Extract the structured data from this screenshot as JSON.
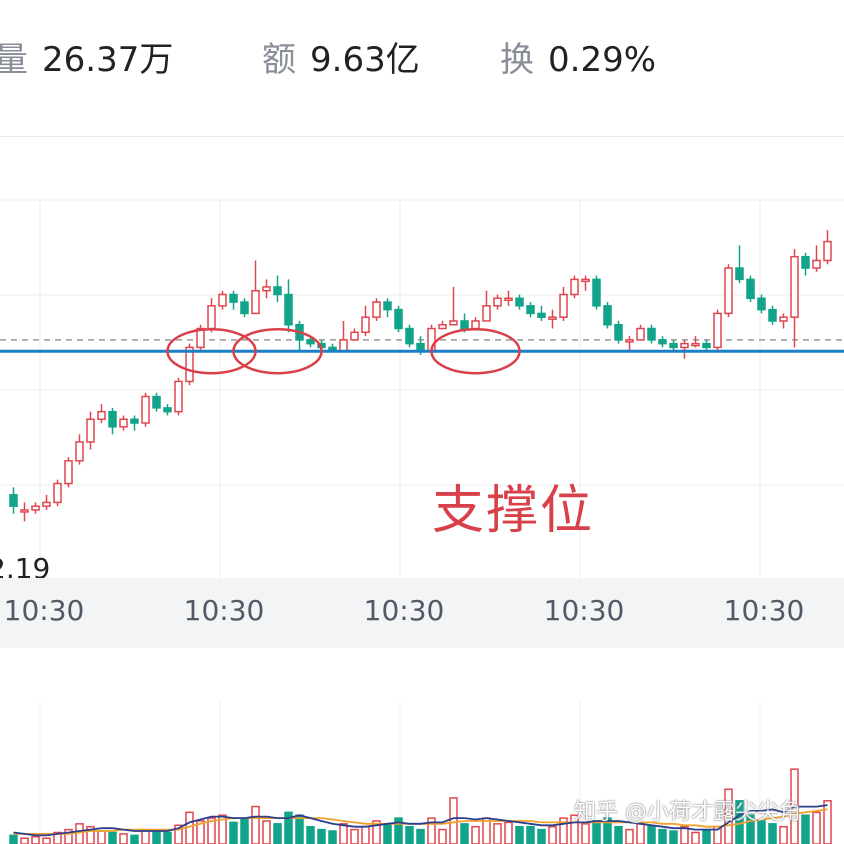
{
  "stats": {
    "volume_label": "量",
    "volume_value": "26.37万",
    "amount_label": "额",
    "amount_value": "9.63亿",
    "turnover_label": "换",
    "turnover_value": "0.29%"
  },
  "low_price_label": "2.19",
  "annotation": "支撑位",
  "watermark": "知乎 @小荷才露尖尖角",
  "colors": {
    "up": "#e0464e",
    "down": "#12a48b",
    "support_line": "#1a7fc7",
    "dashed_ref": "#9a9a9a",
    "ma5": "#2b3f8c",
    "ma10": "#f0a22c",
    "circle": "#d9414a"
  },
  "chart_data": {
    "type": "candlestick",
    "x_ticks": [
      "10:30",
      "10:30",
      "10:30",
      "10:30",
      "10:30"
    ],
    "price_range": [
      0,
      100
    ],
    "support_level": 60,
    "reference_level": 63,
    "support_marks": [
      {
        "center_index": 18
      },
      {
        "center_index": 24
      },
      {
        "center_index": 42
      }
    ],
    "candles": [
      [
        22,
        19,
        24,
        17
      ],
      [
        18,
        18,
        20,
        15
      ],
      [
        18,
        19,
        20,
        17
      ],
      [
        19,
        20,
        22,
        18
      ],
      [
        20,
        25,
        26,
        19
      ],
      [
        25,
        31,
        32,
        24
      ],
      [
        31,
        36,
        38,
        30
      ],
      [
        36,
        42,
        44,
        34
      ],
      [
        42,
        44,
        46,
        41
      ],
      [
        44,
        40,
        45,
        38
      ],
      [
        40,
        42,
        43,
        39
      ],
      [
        42,
        41,
        43,
        39
      ],
      [
        41,
        48,
        49,
        40
      ],
      [
        48,
        45,
        49,
        44
      ],
      [
        45,
        44,
        46,
        43
      ],
      [
        44,
        52,
        53,
        43
      ],
      [
        52,
        61,
        62,
        51
      ],
      [
        61,
        66,
        67,
        60
      ],
      [
        66,
        72,
        74,
        65
      ],
      [
        72,
        75,
        76,
        71
      ],
      [
        75,
        73,
        76,
        71
      ],
      [
        73,
        70,
        74,
        69
      ],
      [
        70,
        76,
        84,
        70
      ],
      [
        76,
        77,
        79,
        74
      ],
      [
        77,
        75,
        80,
        73
      ],
      [
        75,
        67,
        79,
        65
      ],
      [
        67,
        63,
        68,
        60
      ],
      [
        63,
        62,
        64,
        61
      ],
      [
        62,
        61,
        63,
        60
      ],
      [
        61,
        60,
        62,
        60
      ],
      [
        60,
        63,
        68,
        60
      ],
      [
        63,
        65,
        66,
        63
      ],
      [
        65,
        69,
        72,
        64
      ],
      [
        69,
        73,
        74,
        68
      ],
      [
        73,
        71,
        74,
        69
      ],
      [
        71,
        66,
        72,
        65
      ],
      [
        66,
        62,
        67,
        61
      ],
      [
        62,
        60,
        64,
        59
      ],
      [
        60,
        66,
        67,
        59
      ],
      [
        66,
        67,
        68,
        66
      ],
      [
        67,
        68,
        77,
        67
      ],
      [
        68,
        66,
        70,
        65
      ],
      [
        66,
        68,
        69,
        66
      ],
      [
        68,
        72,
        76,
        68
      ],
      [
        72,
        74,
        75,
        71
      ],
      [
        74,
        74,
        76,
        72
      ],
      [
        74,
        72,
        75,
        71
      ],
      [
        72,
        70,
        73,
        69
      ],
      [
        70,
        69,
        72,
        68
      ],
      [
        69,
        69,
        71,
        66
      ],
      [
        69,
        75,
        77,
        68
      ],
      [
        75,
        79,
        80,
        74
      ],
      [
        79,
        79,
        80,
        76
      ],
      [
        79,
        72,
        80,
        71
      ],
      [
        72,
        67,
        73,
        66
      ],
      [
        67,
        63,
        68,
        62
      ],
      [
        63,
        63,
        64,
        60
      ],
      [
        63,
        66,
        67,
        63
      ],
      [
        66,
        63,
        67,
        62
      ],
      [
        63,
        62,
        64,
        61
      ],
      [
        62,
        61,
        63,
        60
      ],
      [
        61,
        62,
        63,
        58
      ],
      [
        62,
        62,
        64,
        61
      ],
      [
        62,
        61,
        63,
        60
      ],
      [
        61,
        70,
        71,
        60
      ],
      [
        70,
        82,
        83,
        69
      ],
      [
        82,
        79,
        88,
        78
      ],
      [
        79,
        74,
        80,
        73
      ],
      [
        74,
        71,
        75,
        70
      ],
      [
        71,
        68,
        72,
        67
      ],
      [
        68,
        69,
        70,
        66
      ],
      [
        69,
        85,
        87,
        61
      ],
      [
        85,
        82,
        86,
        80
      ],
      [
        82,
        84,
        88,
        81
      ],
      [
        84,
        89,
        92,
        83
      ]
    ],
    "volume_range": [
      0,
      100
    ],
    "volumes": [
      6,
      4,
      5,
      4,
      8,
      10,
      14,
      12,
      9,
      8,
      7,
      6,
      10,
      9,
      8,
      13,
      22,
      16,
      18,
      20,
      15,
      17,
      26,
      16,
      14,
      22,
      20,
      12,
      10,
      9,
      14,
      10,
      12,
      16,
      14,
      18,
      12,
      10,
      18,
      10,
      32,
      14,
      12,
      18,
      14,
      15,
      12,
      12,
      10,
      12,
      18,
      20,
      14,
      16,
      18,
      12,
      10,
      14,
      12,
      10,
      9,
      12,
      8,
      10,
      12,
      38,
      30,
      20,
      16,
      14,
      12,
      52,
      20,
      22,
      30
    ],
    "ma5": [
      8,
      7,
      6,
      6,
      7,
      8,
      9,
      10,
      11,
      11,
      10,
      9,
      9,
      9,
      9,
      11,
      15,
      17,
      19,
      19,
      18,
      18,
      19,
      19,
      18,
      18,
      20,
      18,
      16,
      14,
      13,
      12,
      12,
      13,
      14,
      15,
      14,
      14,
      15,
      15,
      18,
      18,
      17,
      18,
      17,
      16,
      15,
      14,
      13,
      13,
      14,
      15,
      15,
      16,
      16,
      16,
      15,
      14,
      13,
      12,
      11,
      11,
      10,
      10,
      10,
      15,
      20,
      23,
      23,
      24,
      22,
      26,
      26,
      26,
      27
    ],
    "ma10": [
      7,
      7,
      7,
      7,
      7,
      7,
      8,
      9,
      9,
      9,
      10,
      10,
      10,
      10,
      10,
      10,
      12,
      14,
      16,
      17,
      18,
      18,
      18,
      18,
      18,
      18,
      18,
      18,
      18,
      17,
      16,
      15,
      14,
      14,
      14,
      14,
      14,
      14,
      14,
      14,
      15,
      16,
      16,
      16,
      16,
      16,
      16,
      16,
      15,
      15,
      15,
      15,
      15,
      15,
      15,
      15,
      15,
      15,
      15,
      14,
      14,
      13,
      13,
      12,
      12,
      13,
      14,
      16,
      17,
      18,
      19,
      21,
      22,
      23,
      24
    ]
  }
}
